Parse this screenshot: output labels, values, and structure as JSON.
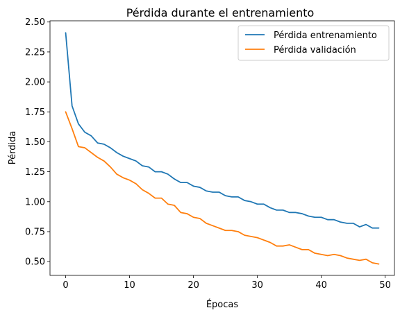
{
  "chart_data": {
    "type": "line",
    "title": "Pérdida durante el entrenamiento",
    "xlabel": "Épocas",
    "ylabel": "Pérdida",
    "xlim": [
      -2.45,
      51.45
    ],
    "ylim": [
      0.385,
      2.51
    ],
    "xticks": [
      0,
      10,
      20,
      30,
      40,
      50
    ],
    "xtick_labels": [
      "0",
      "10",
      "20",
      "30",
      "40",
      "50"
    ],
    "yticks": [
      0.5,
      0.75,
      1.0,
      1.25,
      1.5,
      1.75,
      2.0,
      2.25,
      2.5
    ],
    "ytick_labels": [
      "0.50",
      "0.75",
      "1.00",
      "1.25",
      "1.50",
      "1.75",
      "2.00",
      "2.25",
      "2.50"
    ],
    "grid": false,
    "legend_position": "top-right",
    "x": [
      0,
      1,
      2,
      3,
      4,
      5,
      6,
      7,
      8,
      9,
      10,
      11,
      12,
      13,
      14,
      15,
      16,
      17,
      18,
      19,
      20,
      21,
      22,
      23,
      24,
      25,
      26,
      27,
      28,
      29,
      30,
      31,
      32,
      33,
      34,
      35,
      36,
      37,
      38,
      39,
      40,
      41,
      42,
      43,
      44,
      45,
      46,
      47,
      48,
      49
    ],
    "series": [
      {
        "name": "Pérdida entrenamiento",
        "color": "#1f77b4",
        "values": [
          2.41,
          1.8,
          1.65,
          1.58,
          1.55,
          1.49,
          1.48,
          1.45,
          1.41,
          1.38,
          1.36,
          1.34,
          1.3,
          1.29,
          1.25,
          1.25,
          1.23,
          1.19,
          1.16,
          1.16,
          1.13,
          1.12,
          1.09,
          1.08,
          1.08,
          1.05,
          1.04,
          1.04,
          1.01,
          1.0,
          0.98,
          0.98,
          0.95,
          0.93,
          0.93,
          0.91,
          0.91,
          0.9,
          0.88,
          0.87,
          0.87,
          0.85,
          0.85,
          0.83,
          0.82,
          0.82,
          0.79,
          0.81,
          0.78,
          0.78
        ]
      },
      {
        "name": "Pérdida validación",
        "color": "#ff7f0e",
        "values": [
          1.75,
          1.61,
          1.46,
          1.45,
          1.41,
          1.37,
          1.34,
          1.29,
          1.23,
          1.2,
          1.18,
          1.15,
          1.1,
          1.07,
          1.03,
          1.03,
          0.98,
          0.97,
          0.91,
          0.9,
          0.87,
          0.86,
          0.82,
          0.8,
          0.78,
          0.76,
          0.76,
          0.75,
          0.72,
          0.71,
          0.7,
          0.68,
          0.66,
          0.63,
          0.63,
          0.64,
          0.62,
          0.6,
          0.6,
          0.57,
          0.56,
          0.55,
          0.56,
          0.55,
          0.53,
          0.52,
          0.51,
          0.52,
          0.49,
          0.48
        ]
      }
    ]
  }
}
